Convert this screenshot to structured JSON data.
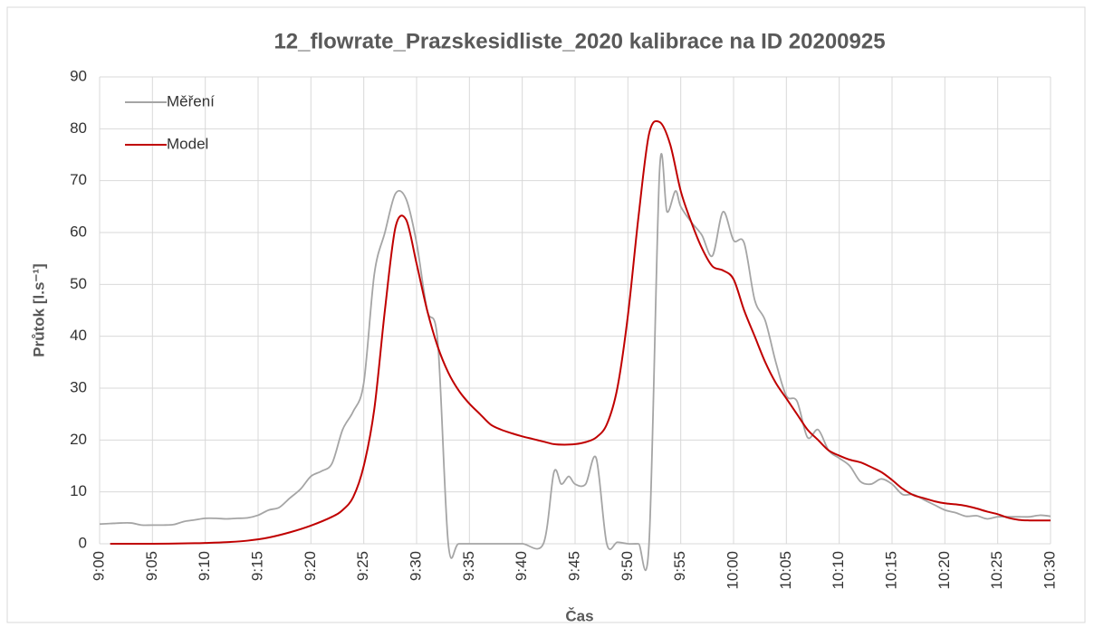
{
  "chart_data": {
    "type": "line",
    "title": "12_flowrate_Prazskesidliste_2020 kalibrace na ID 20200925",
    "x_label": "Čas",
    "y_label": "Průtok [l.s⁻¹]",
    "xlim": [
      0,
      90
    ],
    "xticks": [
      {
        "value": 0,
        "label": "9:00"
      },
      {
        "value": 5,
        "label": "9:05"
      },
      {
        "value": 10,
        "label": "9:10"
      },
      {
        "value": 15,
        "label": "9:15"
      },
      {
        "value": 20,
        "label": "9:20"
      },
      {
        "value": 25,
        "label": "9:25"
      },
      {
        "value": 30,
        "label": "9:30"
      },
      {
        "value": 35,
        "label": "9:35"
      },
      {
        "value": 40,
        "label": "9:40"
      },
      {
        "value": 45,
        "label": "9:45"
      },
      {
        "value": 50,
        "label": "9:50"
      },
      {
        "value": 55,
        "label": "9:55"
      },
      {
        "value": 60,
        "label": "10:00"
      },
      {
        "value": 65,
        "label": "10:05"
      },
      {
        "value": 70,
        "label": "10:10"
      },
      {
        "value": 75,
        "label": "10:15"
      },
      {
        "value": 80,
        "label": "10:20"
      },
      {
        "value": 85,
        "label": "10:25"
      },
      {
        "value": 90,
        "label": "10:30"
      }
    ],
    "ylim": [
      0,
      90
    ],
    "yticks": [
      0,
      10,
      20,
      30,
      40,
      50,
      60,
      70,
      80,
      90
    ],
    "grid": true,
    "legend": "upper left",
    "series": [
      {
        "name": "Měření",
        "color": "#a5a5a5",
        "x": [
          0,
          1,
          2,
          3,
          4,
          5,
          6,
          7,
          8,
          9,
          10,
          11,
          12,
          13,
          14,
          15,
          16,
          17,
          18,
          19,
          20,
          21,
          22,
          23,
          24,
          25,
          26,
          27,
          28,
          29,
          30,
          31,
          32,
          33,
          34,
          36,
          38,
          40,
          42,
          43,
          43.7,
          44.4,
          45,
          46,
          47,
          48,
          49,
          50,
          51,
          52,
          53,
          53.7,
          54.5,
          55,
          56,
          57,
          58,
          59,
          60,
          61,
          62,
          63,
          64,
          65,
          66,
          67,
          68,
          69,
          70,
          71,
          72,
          73,
          74,
          75,
          76,
          77,
          78,
          79,
          80,
          81,
          82,
          83,
          84,
          85,
          86,
          87,
          88,
          89,
          90
        ],
        "values": [
          3.8,
          3.9,
          4,
          4,
          3.6,
          3.6,
          3.6,
          3.7,
          4.3,
          4.6,
          4.9,
          4.9,
          4.8,
          4.9,
          5,
          5.5,
          6.5,
          7,
          8.8,
          10.5,
          13,
          14,
          15.5,
          22,
          25.5,
          31,
          52,
          60,
          67.5,
          66.5,
          58,
          45,
          39,
          0,
          0,
          0,
          0,
          0,
          0,
          13.8,
          11.5,
          13,
          11.5,
          11.5,
          16.5,
          0,
          0.3,
          0,
          0,
          0,
          72,
          64,
          68,
          65,
          62,
          59.5,
          55.5,
          64,
          58.5,
          58,
          47,
          43,
          35,
          28.5,
          27.5,
          20.5,
          22,
          18,
          16.5,
          15,
          12,
          11.5,
          12.5,
          11.5,
          9.5,
          9.5,
          8.5,
          7.5,
          6.5,
          6,
          5.3,
          5.4,
          4.8,
          5.2,
          5.2,
          5.2,
          5.2,
          5.5,
          5.3
        ]
      },
      {
        "name": "Model",
        "color": "#c00000",
        "x": [
          1,
          5,
          9,
          10,
          12,
          14,
          16,
          18,
          20,
          22,
          23,
          24,
          25,
          26,
          27,
          28,
          29,
          30,
          31,
          32,
          33,
          34,
          35,
          36,
          37,
          38,
          39,
          40,
          41,
          42,
          43,
          44,
          45,
          46,
          47,
          48,
          49,
          50,
          51,
          52,
          53,
          54,
          55,
          56,
          57,
          58,
          59,
          60,
          61,
          62,
          63,
          64,
          65,
          66,
          67,
          68,
          69,
          70,
          71,
          72,
          73,
          74,
          75,
          76,
          77,
          78,
          79,
          80,
          81,
          82,
          83,
          84,
          85,
          86,
          87,
          88,
          89,
          90
        ],
        "values": [
          0,
          0,
          0.1,
          0.15,
          0.3,
          0.6,
          1.2,
          2.2,
          3.5,
          5.2,
          6.5,
          9,
          15,
          26,
          45,
          61,
          62.5,
          54,
          45,
          38,
          33,
          29.5,
          27,
          25,
          23,
          22,
          21.3,
          20.7,
          20.2,
          19.7,
          19.2,
          19.1,
          19.2,
          19.6,
          20.5,
          23,
          30,
          44,
          63,
          79,
          81.3,
          77,
          68,
          62,
          57,
          53.5,
          52.7,
          51,
          45,
          40,
          35,
          31,
          28,
          25,
          22,
          20,
          18,
          17,
          16.2,
          15.7,
          14.8,
          13.8,
          12.3,
          10.6,
          9.4,
          8.8,
          8.2,
          7.8,
          7.6,
          7.3,
          6.8,
          6.2,
          5.7,
          5,
          4.6,
          4.5,
          4.5,
          4.5
        ]
      }
    ]
  }
}
